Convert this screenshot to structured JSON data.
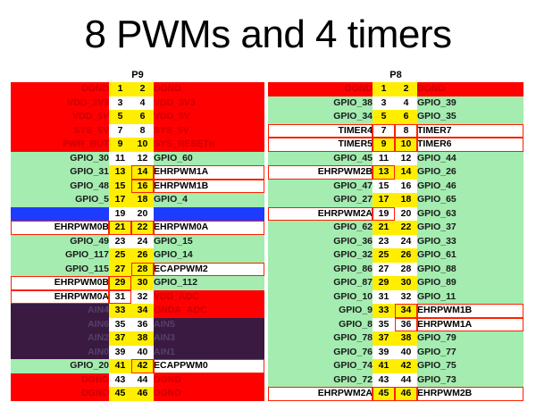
{
  "title": "8 PWMs and 4 timers",
  "p9": {
    "header": "P9",
    "rows": [
      [
        "DGND",
        "red",
        "1",
        "2",
        "DGND",
        "red"
      ],
      [
        "VDD_3V3",
        "red",
        "3",
        "4",
        "VDD_3V3",
        "red"
      ],
      [
        "VDD_5V",
        "red",
        "5",
        "6",
        "VDD_5V",
        "red"
      ],
      [
        "SYS_5V",
        "red",
        "7",
        "8",
        "SYS_5V",
        "red"
      ],
      [
        "PWR_BUT",
        "red",
        "9",
        "10",
        "SYS_RESETn",
        "red"
      ],
      [
        "GPIO_30",
        "green",
        "11",
        "12",
        "GPIO_60",
        "green"
      ],
      [
        "GPIO_31",
        "green",
        "13",
        "14",
        "EHRPWM1A",
        "white"
      ],
      [
        "GPIO_48",
        "green",
        "15",
        "16",
        "EHRPWM1B",
        "white"
      ],
      [
        "GPIO_5",
        "green",
        "17",
        "18",
        "GPIO_4",
        "green"
      ],
      [
        "I2C2_SCL",
        "blue",
        "19",
        "20",
        "I2C2_SDA",
        "blue"
      ],
      [
        "EHRPWM0B",
        "white",
        "21",
        "22",
        "EHRPWM0A",
        "white"
      ],
      [
        "GPIO_49",
        "green",
        "23",
        "24",
        "GPIO_15",
        "green"
      ],
      [
        "GPIO_117",
        "green",
        "25",
        "26",
        "GPIO_14",
        "green"
      ],
      [
        "GPIO_115",
        "green",
        "27",
        "28",
        "ECAPPWM2",
        "white"
      ],
      [
        "EHRPWM0B",
        "white",
        "29",
        "30",
        "GPIO_112",
        "green"
      ],
      [
        "EHRPWM0A",
        "white",
        "31",
        "32",
        "VDD_ADC",
        "red"
      ],
      [
        "AIN4",
        "dark",
        "33",
        "34",
        "GNDA_ADC",
        "red"
      ],
      [
        "AIN6",
        "dark",
        "35",
        "36",
        "AIN5",
        "dark"
      ],
      [
        "AIN2",
        "dark",
        "37",
        "38",
        "AIN3",
        "dark"
      ],
      [
        "AIN0",
        "dark",
        "39",
        "40",
        "AIN1",
        "dark"
      ],
      [
        "GPIO_20",
        "green",
        "41",
        "42",
        "ECAPPWM0",
        "white"
      ],
      [
        "DGND",
        "red",
        "43",
        "44",
        "DGND",
        "red"
      ],
      [
        "DGND",
        "red",
        "45",
        "46",
        "DGND",
        "red"
      ]
    ]
  },
  "p8": {
    "header": "P8",
    "rows": [
      [
        "DGND",
        "red",
        "1",
        "2",
        "DGND",
        "red"
      ],
      [
        "GPIO_38",
        "green",
        "3",
        "4",
        "GPIO_39",
        "green"
      ],
      [
        "GPIO_34",
        "green",
        "5",
        "6",
        "GPIO_35",
        "green"
      ],
      [
        "TIMER4",
        "white",
        "7",
        "8",
        "TIMER7",
        "white"
      ],
      [
        "TIMER5",
        "white",
        "9",
        "10",
        "TIMER6",
        "white"
      ],
      [
        "GPIO_45",
        "green",
        "11",
        "12",
        "GPIO_44",
        "green"
      ],
      [
        "EHRPWM2B",
        "white",
        "13",
        "14",
        "GPIO_26",
        "green"
      ],
      [
        "GPIO_47",
        "green",
        "15",
        "16",
        "GPIO_46",
        "green"
      ],
      [
        "GPIO_27",
        "green",
        "17",
        "18",
        "GPIO_65",
        "green"
      ],
      [
        "EHRPWM2A",
        "white",
        "19",
        "20",
        "GPIO_63",
        "green"
      ],
      [
        "GPIO_62",
        "green",
        "21",
        "22",
        "GPIO_37",
        "green"
      ],
      [
        "GPIO_36",
        "green",
        "23",
        "24",
        "GPIO_33",
        "green"
      ],
      [
        "GPIO_32",
        "green",
        "25",
        "26",
        "GPIO_61",
        "green"
      ],
      [
        "GPIO_86",
        "green",
        "27",
        "28",
        "GPIO_88",
        "green"
      ],
      [
        "GPIO_87",
        "green",
        "29",
        "30",
        "GPIO_89",
        "green"
      ],
      [
        "GPIO_10",
        "green",
        "31",
        "32",
        "GPIO_11",
        "green"
      ],
      [
        "GPIO_9",
        "green",
        "33",
        "34",
        "EHRPWM1B",
        "white"
      ],
      [
        "GPIO_8",
        "green",
        "35",
        "36",
        "EHRPWM1A",
        "white"
      ],
      [
        "GPIO_78",
        "green",
        "37",
        "38",
        "GPIO_79",
        "green"
      ],
      [
        "GPIO_76",
        "green",
        "39",
        "40",
        "GPIO_77",
        "green"
      ],
      [
        "GPIO_74",
        "green",
        "41",
        "42",
        "GPIO_75",
        "green"
      ],
      [
        "GPIO_72",
        "green",
        "43",
        "44",
        "GPIO_73",
        "green"
      ],
      [
        "EHRPWM2A",
        "white",
        "45",
        "46",
        "EHRPWM2B",
        "white"
      ]
    ]
  }
}
